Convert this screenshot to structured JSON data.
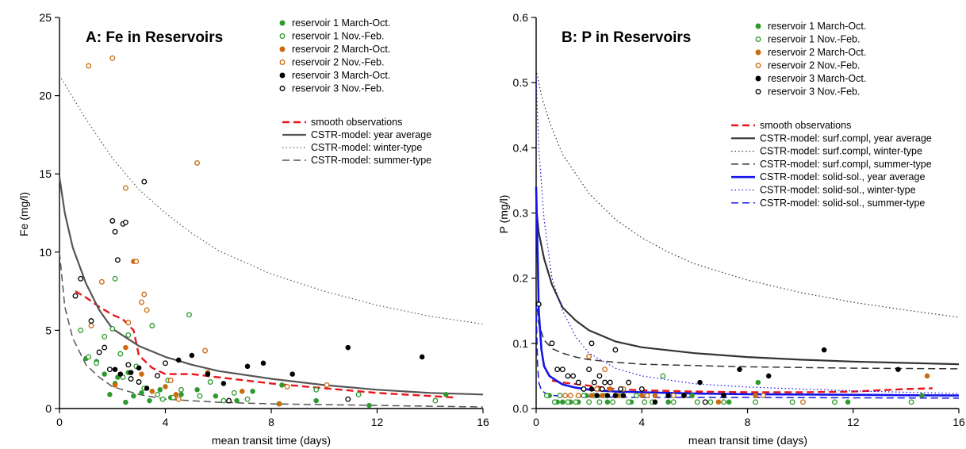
{
  "chart_data": [
    {
      "type": "scatter",
      "title": "A: Fe in Reservoirs",
      "xlabel": "mean transit time (days)",
      "ylabel": "Fe (mg/l)",
      "xlim": [
        0,
        16
      ],
      "ylim": [
        0,
        25
      ],
      "xticks": [
        0,
        4,
        8,
        12,
        16
      ],
      "yticks": [
        0,
        5,
        10,
        15,
        20,
        25
      ],
      "grid": false,
      "legend_position": "top-right",
      "points": [
        {
          "name": "reservoir 1 March-Oct.",
          "color": "#2e9a2e",
          "filled": true,
          "x": [
            1.0,
            1.4,
            1.7,
            1.9,
            2.1,
            2.2,
            2.5,
            2.6,
            2.8,
            3.1,
            3.4,
            3.8,
            4.2,
            4.6,
            5.2,
            5.9,
            6.7,
            7.3,
            8.4,
            9.7,
            11.7,
            14.6
          ],
          "y": [
            3.2,
            3.0,
            2.2,
            0.9,
            1.6,
            2.0,
            0.4,
            2.3,
            0.8,
            1.0,
            0.5,
            1.2,
            0.7,
            0.9,
            1.2,
            0.8,
            0.5,
            1.1,
            1.5,
            0.5,
            0.2,
            0.9
          ]
        },
        {
          "name": "reservoir 1 Nov.-Feb.",
          "color": "#2e9a2e",
          "filled": false,
          "x": [
            0.8,
            1.1,
            1.4,
            1.7,
            2.0,
            2.1,
            2.3,
            2.4,
            2.6,
            2.9,
            3.2,
            3.5,
            3.7,
            3.9,
            4.1,
            4.3,
            4.6,
            4.9,
            5.3,
            5.7,
            6.2,
            6.6,
            7.1,
            8.3,
            9.7,
            11.3,
            14.2
          ],
          "y": [
            5.0,
            3.3,
            2.9,
            4.6,
            5.1,
            8.3,
            3.5,
            2.0,
            4.7,
            2.7,
            1.3,
            5.3,
            0.9,
            0.6,
            1.8,
            0.7,
            1.2,
            6.0,
            0.8,
            1.7,
            0.5,
            1.0,
            0.6,
            0.3,
            1.2,
            0.9,
            0.5
          ]
        },
        {
          "name": "reservoir 2 March-Oct.",
          "color": "#cc6a10",
          "filled": true,
          "x": [
            2.1,
            2.5,
            2.8,
            3.1,
            3.5,
            4.0,
            4.4,
            5.6,
            6.9,
            8.3
          ],
          "y": [
            1.5,
            3.9,
            9.4,
            2.2,
            1.1,
            1.4,
            0.9,
            2.3,
            1.1,
            0.3
          ]
        },
        {
          "name": "reservoir 2 Nov.-Feb.",
          "color": "#cc6a10",
          "filled": false,
          "x": [
            1.1,
            2.0,
            1.2,
            1.6,
            2.5,
            2.6,
            2.9,
            3.1,
            3.2,
            3.3,
            4.2,
            4.5,
            5.2,
            5.5,
            8.6,
            10.1
          ],
          "y": [
            21.9,
            22.4,
            5.3,
            8.1,
            14.1,
            5.5,
            9.4,
            6.8,
            7.3,
            6.3,
            1.8,
            0.6,
            15.7,
            3.7,
            1.4,
            1.5
          ]
        },
        {
          "name": "reservoir 3 March-Oct.",
          "color": "#000000",
          "filled": true,
          "x": [
            2.1,
            2.3,
            2.7,
            3.0,
            3.3,
            4.5,
            5.0,
            5.6,
            6.2,
            7.1,
            7.7,
            8.8,
            10.9,
            13.7
          ],
          "y": [
            2.5,
            2.2,
            2.3,
            2.6,
            1.3,
            3.1,
            3.4,
            2.2,
            1.6,
            2.7,
            2.9,
            2.2,
            3.9,
            3.3
          ]
        },
        {
          "name": "reservoir 3 Nov.-Feb.",
          "color": "#000000",
          "filled": false,
          "x": [
            0.6,
            0.8,
            1.2,
            1.5,
            1.7,
            1.9,
            2.0,
            2.1,
            2.2,
            2.4,
            2.5,
            2.6,
            2.7,
            3.0,
            3.2,
            3.7,
            4.0,
            6.4,
            10.9
          ],
          "y": [
            7.2,
            8.3,
            5.6,
            3.6,
            3.9,
            2.5,
            12.0,
            11.3,
            9.5,
            11.8,
            11.9,
            2.8,
            1.9,
            1.7,
            14.5,
            2.1,
            2.9,
            0.5,
            0.6
          ]
        }
      ],
      "lines": [
        {
          "name": "smooth observations",
          "color": "#e8161b",
          "style": "dashed-bold",
          "x": [
            0.6,
            1.0,
            1.5,
            2.0,
            2.4,
            2.8,
            3.0,
            3.5,
            4.0,
            5.0,
            6.0,
            8.0,
            10.0,
            12.0,
            14.0,
            15.0
          ],
          "y": [
            7.5,
            7.1,
            6.5,
            6.0,
            5.7,
            5.0,
            3.4,
            2.6,
            2.2,
            2.2,
            2.0,
            1.6,
            1.3,
            1.0,
            0.8,
            0.7
          ]
        },
        {
          "name": "CSTR-model: year average",
          "color": "#555555",
          "style": "solid",
          "x": [
            0.0,
            0.2,
            0.5,
            1.0,
            1.5,
            2.0,
            3.0,
            4.0,
            5.0,
            6.0,
            8.0,
            10.0,
            12.0,
            14.0,
            16.0
          ],
          "y": [
            14.8,
            12.5,
            10.3,
            8.0,
            6.3,
            5.1,
            4.0,
            3.3,
            2.8,
            2.4,
            1.9,
            1.5,
            1.2,
            1.0,
            0.9
          ]
        },
        {
          "name": "CSTR-model: winter-type",
          "color": "#555555",
          "style": "dotted",
          "x": [
            0.0,
            1.0,
            2.0,
            3.0,
            4.0,
            5.0,
            6.0,
            8.0,
            10.0,
            12.0,
            14.0,
            16.0
          ],
          "y": [
            21.3,
            18.5,
            16.0,
            14.0,
            12.5,
            11.2,
            10.1,
            8.6,
            7.5,
            6.6,
            5.9,
            5.4
          ]
        },
        {
          "name": "CSTR-model: summer-type",
          "color": "#555555",
          "style": "dashed",
          "x": [
            0.0,
            0.2,
            0.5,
            1.0,
            1.5,
            2.0,
            3.0,
            4.0,
            6.0,
            8.0,
            12.0,
            16.0
          ],
          "y": [
            10.0,
            6.5,
            4.5,
            2.8,
            2.0,
            1.4,
            0.9,
            0.6,
            0.4,
            0.3,
            0.2,
            0.1
          ]
        }
      ]
    },
    {
      "type": "scatter",
      "title": "B: P in Reservoirs",
      "xlabel": "mean transit time (days)",
      "ylabel": "P (mg/l)",
      "xlim": [
        0,
        16
      ],
      "ylim": [
        0,
        0.6
      ],
      "xticks": [
        0,
        4,
        8,
        12,
        16
      ],
      "yticks": [
        0.0,
        0.1,
        0.2,
        0.3,
        0.4,
        0.5,
        0.6
      ],
      "grid": false,
      "legend_position": "top-right",
      "points": [
        {
          "name": "reservoir 1 March-Oct.",
          "color": "#2e9a2e",
          "filled": true,
          "x": [
            0.5,
            0.8,
            1.0,
            1.3,
            1.6,
            1.9,
            2.3,
            2.7,
            3.2,
            3.6,
            4.2,
            5.0,
            5.9,
            6.6,
            7.3,
            8.4,
            9.7,
            11.8,
            14.6
          ],
          "y": [
            0.02,
            0.01,
            0.01,
            0.01,
            0.01,
            0.02,
            0.02,
            0.01,
            0.02,
            0.01,
            0.02,
            0.01,
            0.02,
            0.01,
            0.01,
            0.04,
            0.01,
            0.01,
            0.02
          ]
        },
        {
          "name": "reservoir 1 Nov.-Feb.",
          "color": "#2e9a2e",
          "filled": false,
          "x": [
            0.4,
            0.7,
            0.9,
            1.2,
            1.5,
            1.8,
            2.0,
            2.2,
            2.4,
            2.6,
            2.9,
            3.2,
            3.5,
            3.8,
            4.1,
            4.4,
            4.8,
            5.2,
            5.6,
            6.1,
            6.6,
            7.1,
            8.3,
            9.7,
            11.3,
            14.2
          ],
          "y": [
            0.02,
            0.01,
            0.02,
            0.01,
            0.01,
            0.02,
            0.01,
            0.02,
            0.01,
            0.02,
            0.01,
            0.02,
            0.01,
            0.02,
            0.01,
            0.01,
            0.05,
            0.01,
            0.02,
            0.01,
            0.01,
            0.01,
            0.01,
            0.01,
            0.01,
            0.01
          ]
        },
        {
          "name": "reservoir 2 March-Oct.",
          "color": "#cc6a10",
          "filled": true,
          "x": [
            2.1,
            2.5,
            2.8,
            3.1,
            3.5,
            4.0,
            4.5,
            5.6,
            6.9,
            8.3,
            14.8
          ],
          "y": [
            0.02,
            0.02,
            0.03,
            0.02,
            0.04,
            0.02,
            0.02,
            0.02,
            0.01,
            0.02,
            0.05
          ]
        },
        {
          "name": "reservoir 2 Nov.-Feb.",
          "color": "#cc6a10",
          "filled": false,
          "x": [
            1.1,
            1.3,
            1.6,
            2.0,
            2.3,
            2.6,
            3.0,
            3.3,
            4.2,
            5.2,
            8.6,
            10.1
          ],
          "y": [
            0.02,
            0.02,
            0.02,
            0.08,
            0.03,
            0.06,
            0.02,
            0.03,
            0.02,
            0.02,
            0.02,
            0.01
          ]
        },
        {
          "name": "reservoir 3 March-Oct.",
          "color": "#000000",
          "filled": true,
          "x": [
            2.1,
            2.3,
            2.7,
            3.0,
            3.3,
            4.5,
            5.0,
            5.6,
            6.2,
            7.1,
            7.7,
            8.8,
            10.9,
            13.7
          ],
          "y": [
            0.03,
            0.02,
            0.02,
            0.02,
            0.02,
            0.01,
            0.02,
            0.02,
            0.04,
            0.02,
            0.06,
            0.05,
            0.09,
            0.06
          ]
        },
        {
          "name": "reservoir 3 Nov.-Feb.",
          "color": "#000000",
          "filled": false,
          "x": [
            0.1,
            0.6,
            0.8,
            1.0,
            1.2,
            1.4,
            1.6,
            1.8,
            2.0,
            2.1,
            2.2,
            2.4,
            2.5,
            2.6,
            2.8,
            3.0,
            3.2,
            3.5,
            4.0,
            6.4
          ],
          "y": [
            0.16,
            0.1,
            0.06,
            0.06,
            0.05,
            0.05,
            0.04,
            0.03,
            0.06,
            0.1,
            0.04,
            0.05,
            0.03,
            0.04,
            0.04,
            0.09,
            0.03,
            0.04,
            0.03,
            0.01
          ]
        }
      ],
      "lines": [
        {
          "name": "smooth observations",
          "color": "#e8161b",
          "style": "dashed-bold",
          "x": [
            0.6,
            1.0,
            2.0,
            3.0,
            4.0,
            6.0,
            8.0,
            10.0,
            12.0,
            14.0,
            15.0
          ],
          "y": [
            0.043,
            0.04,
            0.035,
            0.03,
            0.028,
            0.026,
            0.025,
            0.025,
            0.026,
            0.03,
            0.031
          ]
        },
        {
          "name": "CSTR-model: surf.compl, year average",
          "color": "#333333",
          "style": "solid",
          "x": [
            0.0,
            0.1,
            0.3,
            0.6,
            1.0,
            1.5,
            2.0,
            3.0,
            4.0,
            6.0,
            8.0,
            10.0,
            12.0,
            14.0,
            16.0
          ],
          "y": [
            0.31,
            0.27,
            0.23,
            0.19,
            0.155,
            0.135,
            0.12,
            0.103,
            0.094,
            0.085,
            0.079,
            0.075,
            0.072,
            0.07,
            0.068
          ]
        },
        {
          "name": "CSTR-model: surf.compl, winter-type",
          "color": "#333333",
          "style": "dotted",
          "x": [
            0.0,
            0.2,
            0.5,
            1.0,
            1.5,
            2.0,
            3.0,
            4.0,
            5.0,
            6.0,
            8.0,
            10.0,
            12.0,
            14.0,
            16.0
          ],
          "y": [
            0.52,
            0.48,
            0.44,
            0.39,
            0.36,
            0.33,
            0.29,
            0.262,
            0.24,
            0.222,
            0.197,
            0.178,
            0.163,
            0.151,
            0.14
          ]
        },
        {
          "name": "CSTR-model: surf.compl,  summer-type",
          "color": "#333333",
          "style": "dashed",
          "x": [
            0.0,
            0.1,
            0.3,
            0.6,
            1.0,
            1.5,
            2.0,
            3.0,
            4.0,
            6.0,
            8.0,
            12.0,
            16.0
          ],
          "y": [
            0.17,
            0.13,
            0.105,
            0.092,
            0.085,
            0.079,
            0.075,
            0.071,
            0.068,
            0.066,
            0.064,
            0.062,
            0.061
          ]
        },
        {
          "name": "CSTR-model: solid-sol., year average",
          "color": "#1414e6",
          "style": "solid-bold",
          "x": [
            0.0,
            0.05,
            0.1,
            0.2,
            0.3,
            0.5,
            0.8,
            1.0,
            1.5,
            2.0,
            3.0,
            4.0,
            6.0,
            8.0,
            12.0,
            16.0
          ],
          "y": [
            0.34,
            0.25,
            0.15,
            0.09,
            0.065,
            0.05,
            0.042,
            0.037,
            0.032,
            0.029,
            0.026,
            0.025,
            0.023,
            0.022,
            0.021,
            0.02
          ]
        },
        {
          "name": "CSTR-model: solid-sol., winter-type",
          "color": "#1414e6",
          "style": "dotted",
          "x": [
            0.0,
            0.1,
            0.3,
            0.6,
            1.0,
            1.5,
            2.0,
            3.0,
            4.0,
            6.0,
            8.0,
            12.0,
            16.0
          ],
          "y": [
            0.51,
            0.4,
            0.29,
            0.2,
            0.15,
            0.11,
            0.085,
            0.062,
            0.05,
            0.038,
            0.033,
            0.027,
            0.023
          ]
        },
        {
          "name": "CSTR-model: solid-sol.,  summer-type",
          "color": "#1414e6",
          "style": "dashed",
          "x": [
            0.0,
            0.05,
            0.1,
            0.2,
            0.4,
            0.7,
            1.0,
            2.0,
            4.0,
            8.0,
            16.0
          ],
          "y": [
            0.16,
            0.07,
            0.04,
            0.028,
            0.022,
            0.02,
            0.019,
            0.018,
            0.017,
            0.017,
            0.016
          ]
        }
      ]
    }
  ]
}
